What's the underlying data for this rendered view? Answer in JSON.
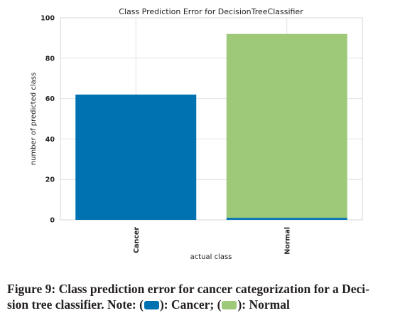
{
  "chart_data": {
    "type": "bar",
    "stacked": true,
    "title": "Class Prediction Error for DecisionTreeClassifier",
    "xlabel": "actual class",
    "ylabel": "number of predicted class",
    "categories": [
      "Cancer",
      "Normal"
    ],
    "series": [
      {
        "name": "Cancer",
        "values": [
          62,
          1
        ]
      },
      {
        "name": "Normal",
        "values": [
          0,
          91
        ]
      }
    ],
    "ylim": [
      0,
      100
    ],
    "yticks": [
      "0",
      "20",
      "40",
      "60",
      "80",
      "100"
    ],
    "grid": true,
    "colors": {
      "Cancer": "#0072b2",
      "Normal": "#9dc978"
    }
  },
  "caption": {
    "line1": "Figure 9: Class prediction error for cancer categorization for a Deci-",
    "line2_a": "sion tree classifier. Note: (",
    "line2_b": "): Cancer; (",
    "line2_c": "): Normal"
  }
}
